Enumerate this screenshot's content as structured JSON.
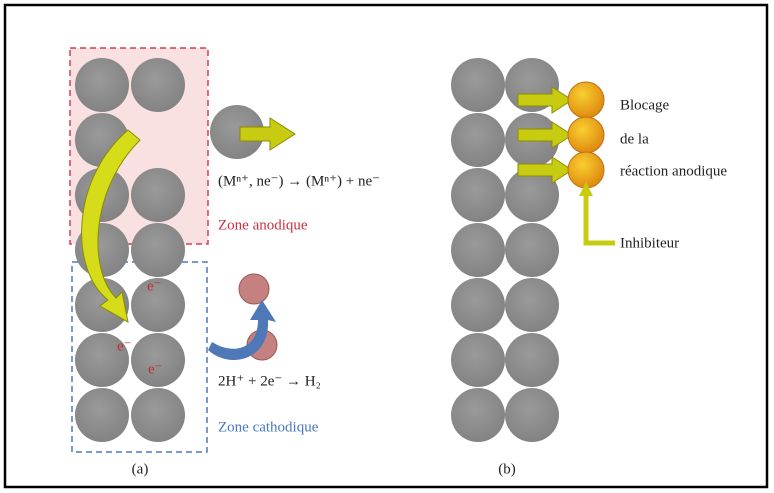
{
  "panel_a": {
    "equation_anodic": "(Mⁿ⁺, ne⁻) → (Mⁿ⁺) + ne⁻",
    "zone_anodic": "Zone anodique",
    "electrons": [
      "e⁻",
      "e⁻",
      "e⁻"
    ],
    "equation_cathodic": "2H⁺ + 2e⁻ → H₂",
    "zone_cathodic": "Zone cathodique",
    "label": "(a)"
  },
  "panel_b": {
    "annotation": [
      "Blocage",
      "de la",
      "réaction anodique"
    ],
    "inhibitor": "Inhibiteur",
    "label": "(b)"
  }
}
